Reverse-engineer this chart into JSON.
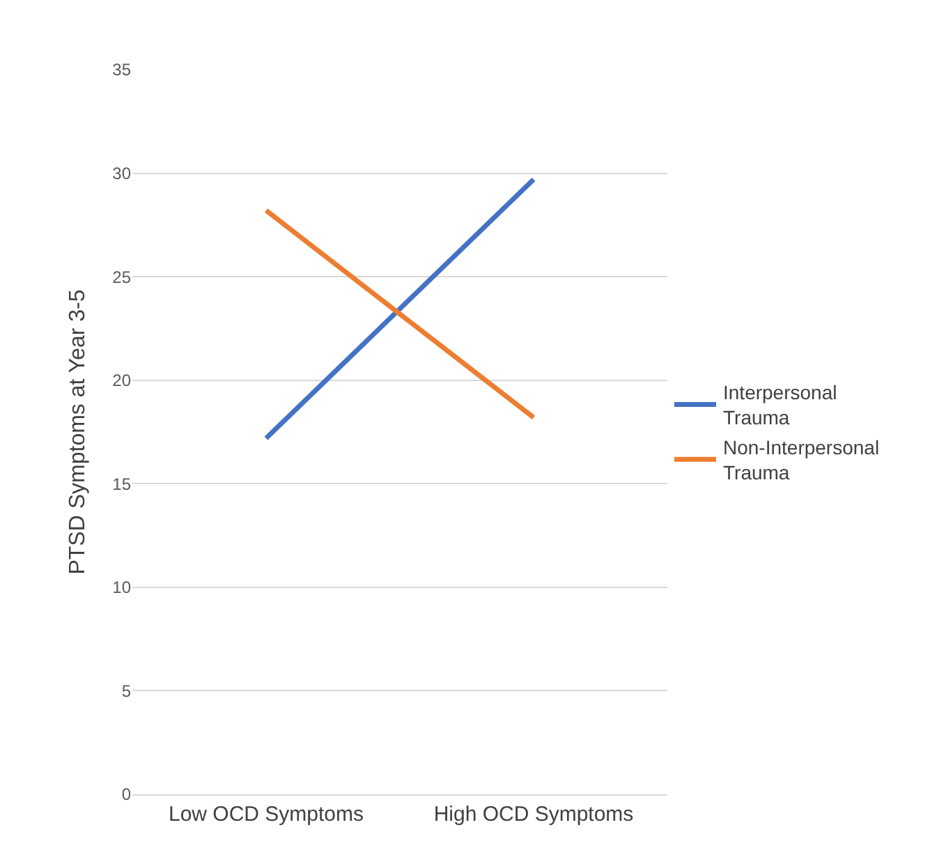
{
  "chart_data": {
    "type": "line",
    "ylabel": "PTSD Symptoms at Year 3-5",
    "categories": [
      "Low OCD Symptoms",
      "High OCD Symptoms"
    ],
    "series": [
      {
        "name": "Interpersonal Trauma",
        "color": "#4472c4",
        "values": [
          17.2,
          29.7
        ]
      },
      {
        "name": "Non-Interpersonal Trauma",
        "color": "#ed7d31",
        "values": [
          28.2,
          18.2
        ]
      }
    ],
    "ylim": [
      0,
      35
    ],
    "yticks": [
      0,
      5,
      10,
      15,
      20,
      25,
      30,
      35
    ],
    "grid": "y",
    "legend": "right",
    "marker": "none",
    "line_style": "solid"
  }
}
